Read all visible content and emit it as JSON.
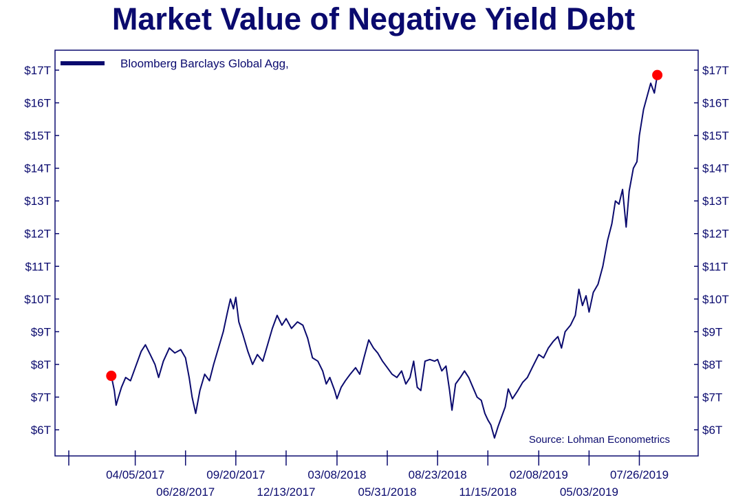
{
  "chart_data": {
    "type": "line",
    "title": "Market Value of Negative Yield Debt",
    "xlabel": "",
    "ylabel": "",
    "ylim": [
      5.5,
      17.6
    ],
    "y_ticks": [
      {
        "value": 6,
        "label": "$6T"
      },
      {
        "value": 7,
        "label": "$7T"
      },
      {
        "value": 8,
        "label": "$8T"
      },
      {
        "value": 9,
        "label": "$9T"
      },
      {
        "value": 10,
        "label": "$10T"
      },
      {
        "value": 11,
        "label": "$11T"
      },
      {
        "value": 12,
        "label": "$12T"
      },
      {
        "value": 13,
        "label": "$13T"
      },
      {
        "value": 14,
        "label": "$14T"
      },
      {
        "value": 15,
        "label": "$15T"
      },
      {
        "value": 16,
        "label": "$16T"
      },
      {
        "value": 17,
        "label": "$17T"
      }
    ],
    "x_range": [
      "2016-12-15",
      "2019-10-15"
    ],
    "x_ticks_upper": [
      {
        "date": "2017-04-05",
        "label": "04/05/2017"
      },
      {
        "date": "2017-09-20",
        "label": "09/20/2017"
      },
      {
        "date": "2018-03-08",
        "label": "03/08/2018"
      },
      {
        "date": "2018-08-23",
        "label": "08/23/2018"
      },
      {
        "date": "2019-02-08",
        "label": "02/08/2019"
      },
      {
        "date": "2019-07-26",
        "label": "07/26/2019"
      }
    ],
    "x_ticks_lower": [
      {
        "date": "2017-06-28",
        "label": "06/28/2017"
      },
      {
        "date": "2017-12-13",
        "label": "12/13/2017"
      },
      {
        "date": "2018-05-31",
        "label": "05/31/2018"
      },
      {
        "date": "2018-11-15",
        "label": "11/15/2018"
      },
      {
        "date": "2019-05-03",
        "label": "05/03/2019"
      }
    ],
    "legend": {
      "entries": [
        "Bloomberg Barclays Global Agg,"
      ],
      "position": "top-left"
    },
    "annotation": "Source: Lohman Econometrics",
    "grid": false,
    "series": [
      {
        "name": "Bloomberg Barclays Global Agg,",
        "color": "#0a0a6e",
        "points": [
          [
            "2017-02-24",
            7.65
          ],
          [
            "2017-03-01",
            7.2
          ],
          [
            "2017-03-04",
            6.75
          ],
          [
            "2017-03-08",
            7.0
          ],
          [
            "2017-03-13",
            7.3
          ],
          [
            "2017-03-20",
            7.6
          ],
          [
            "2017-03-28",
            7.5
          ],
          [
            "2017-04-05",
            7.9
          ],
          [
            "2017-04-15",
            8.4
          ],
          [
            "2017-04-22",
            8.6
          ],
          [
            "2017-04-30",
            8.3
          ],
          [
            "2017-05-08",
            8.0
          ],
          [
            "2017-05-14",
            7.6
          ],
          [
            "2017-05-22",
            8.1
          ],
          [
            "2017-06-01",
            8.5
          ],
          [
            "2017-06-10",
            8.35
          ],
          [
            "2017-06-20",
            8.45
          ],
          [
            "2017-06-28",
            8.2
          ],
          [
            "2017-07-04",
            7.6
          ],
          [
            "2017-07-09",
            7.0
          ],
          [
            "2017-07-15",
            6.5
          ],
          [
            "2017-07-22",
            7.2
          ],
          [
            "2017-07-30",
            7.7
          ],
          [
            "2017-08-07",
            7.5
          ],
          [
            "2017-08-14",
            8.0
          ],
          [
            "2017-08-22",
            8.5
          ],
          [
            "2017-08-30",
            9.0
          ],
          [
            "2017-09-06",
            9.6
          ],
          [
            "2017-09-11",
            10.0
          ],
          [
            "2017-09-16",
            9.7
          ],
          [
            "2017-09-20",
            10.05
          ],
          [
            "2017-09-25",
            9.3
          ],
          [
            "2017-10-02",
            8.9
          ],
          [
            "2017-10-10",
            8.4
          ],
          [
            "2017-10-18",
            8.0
          ],
          [
            "2017-10-26",
            8.3
          ],
          [
            "2017-11-04",
            8.1
          ],
          [
            "2017-11-12",
            8.6
          ],
          [
            "2017-11-20",
            9.1
          ],
          [
            "2017-11-28",
            9.5
          ],
          [
            "2017-12-06",
            9.2
          ],
          [
            "2017-12-13",
            9.4
          ],
          [
            "2017-12-22",
            9.1
          ],
          [
            "2018-01-01",
            9.3
          ],
          [
            "2018-01-10",
            9.2
          ],
          [
            "2018-01-18",
            8.8
          ],
          [
            "2018-01-26",
            8.2
          ],
          [
            "2018-02-04",
            8.1
          ],
          [
            "2018-02-12",
            7.8
          ],
          [
            "2018-02-18",
            7.4
          ],
          [
            "2018-02-24",
            7.6
          ],
          [
            "2018-03-04",
            7.2
          ],
          [
            "2018-03-08",
            6.95
          ],
          [
            "2018-03-15",
            7.3
          ],
          [
            "2018-03-22",
            7.5
          ],
          [
            "2018-03-30",
            7.7
          ],
          [
            "2018-04-08",
            7.9
          ],
          [
            "2018-04-15",
            7.7
          ],
          [
            "2018-04-22",
            8.2
          ],
          [
            "2018-04-30",
            8.75
          ],
          [
            "2018-05-08",
            8.5
          ],
          [
            "2018-05-15",
            8.35
          ],
          [
            "2018-05-23",
            8.1
          ],
          [
            "2018-05-31",
            7.9
          ],
          [
            "2018-06-08",
            7.7
          ],
          [
            "2018-06-16",
            7.6
          ],
          [
            "2018-06-24",
            7.8
          ],
          [
            "2018-07-01",
            7.4
          ],
          [
            "2018-07-08",
            7.6
          ],
          [
            "2018-07-14",
            8.1
          ],
          [
            "2018-07-20",
            7.3
          ],
          [
            "2018-07-26",
            7.2
          ],
          [
            "2018-08-02",
            8.1
          ],
          [
            "2018-08-10",
            8.15
          ],
          [
            "2018-08-18",
            8.1
          ],
          [
            "2018-08-23",
            8.15
          ],
          [
            "2018-08-30",
            7.8
          ],
          [
            "2018-09-06",
            7.95
          ],
          [
            "2018-09-12",
            7.2
          ],
          [
            "2018-09-16",
            6.6
          ],
          [
            "2018-09-22",
            7.4
          ],
          [
            "2018-09-30",
            7.6
          ],
          [
            "2018-10-07",
            7.8
          ],
          [
            "2018-10-14",
            7.6
          ],
          [
            "2018-10-21",
            7.3
          ],
          [
            "2018-10-28",
            7.0
          ],
          [
            "2018-11-04",
            6.9
          ],
          [
            "2018-11-10",
            6.5
          ],
          [
            "2018-11-15",
            6.3
          ],
          [
            "2018-11-20",
            6.15
          ],
          [
            "2018-11-26",
            5.75
          ],
          [
            "2018-12-02",
            6.1
          ],
          [
            "2018-12-08",
            6.4
          ],
          [
            "2018-12-14",
            6.7
          ],
          [
            "2018-12-19",
            7.25
          ],
          [
            "2018-12-26",
            6.95
          ],
          [
            "2019-01-04",
            7.2
          ],
          [
            "2019-01-12",
            7.45
          ],
          [
            "2019-01-20",
            7.6
          ],
          [
            "2019-01-28",
            7.9
          ],
          [
            "2019-02-08",
            8.3
          ],
          [
            "2019-02-16",
            8.2
          ],
          [
            "2019-02-24",
            8.5
          ],
          [
            "2019-03-04",
            8.7
          ],
          [
            "2019-03-12",
            8.85
          ],
          [
            "2019-03-18",
            8.5
          ],
          [
            "2019-03-24",
            9.0
          ],
          [
            "2019-04-02",
            9.2
          ],
          [
            "2019-04-10",
            9.5
          ],
          [
            "2019-04-16",
            10.3
          ],
          [
            "2019-04-22",
            9.8
          ],
          [
            "2019-04-28",
            10.1
          ],
          [
            "2019-05-03",
            9.6
          ],
          [
            "2019-05-10",
            10.2
          ],
          [
            "2019-05-18",
            10.45
          ],
          [
            "2019-05-26",
            11.0
          ],
          [
            "2019-06-03",
            11.8
          ],
          [
            "2019-06-10",
            12.3
          ],
          [
            "2019-06-16",
            13.0
          ],
          [
            "2019-06-22",
            12.9
          ],
          [
            "2019-06-28",
            13.35
          ],
          [
            "2019-07-04",
            12.2
          ],
          [
            "2019-07-09",
            13.3
          ],
          [
            "2019-07-16",
            14.0
          ],
          [
            "2019-07-22",
            14.2
          ],
          [
            "2019-07-26",
            15.0
          ],
          [
            "2019-08-02",
            15.8
          ],
          [
            "2019-08-08",
            16.2
          ],
          [
            "2019-08-14",
            16.6
          ],
          [
            "2019-08-20",
            16.3
          ],
          [
            "2019-08-25",
            16.85
          ]
        ],
        "markers": [
          {
            "date": "2017-02-24",
            "value": 7.65,
            "color": "#ff0000"
          },
          {
            "date": "2019-08-25",
            "value": 16.85,
            "color": "#ff0000"
          }
        ]
      }
    ]
  }
}
